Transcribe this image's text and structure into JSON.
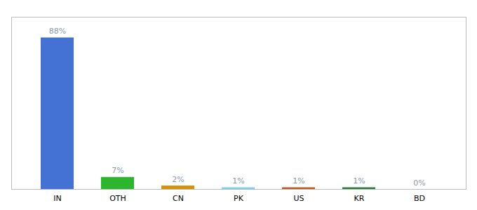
{
  "chart_data": {
    "type": "bar",
    "categories": [
      "IN",
      "OTH",
      "CN",
      "PK",
      "US",
      "KR",
      "BD"
    ],
    "values": [
      88,
      7,
      2,
      1,
      1,
      1,
      0
    ],
    "value_labels": [
      "88%",
      "7%",
      "2%",
      "1%",
      "1%",
      "1%",
      "0%"
    ],
    "colors": [
      "#4472d4",
      "#2db52d",
      "#d4900a",
      "#7ecfed",
      "#b85c2a",
      "#2a7a3a",
      "#aaaaaa"
    ],
    "ylim": [
      0,
      100
    ],
    "data_labels": true,
    "tick_labels": "x",
    "grid": false
  }
}
